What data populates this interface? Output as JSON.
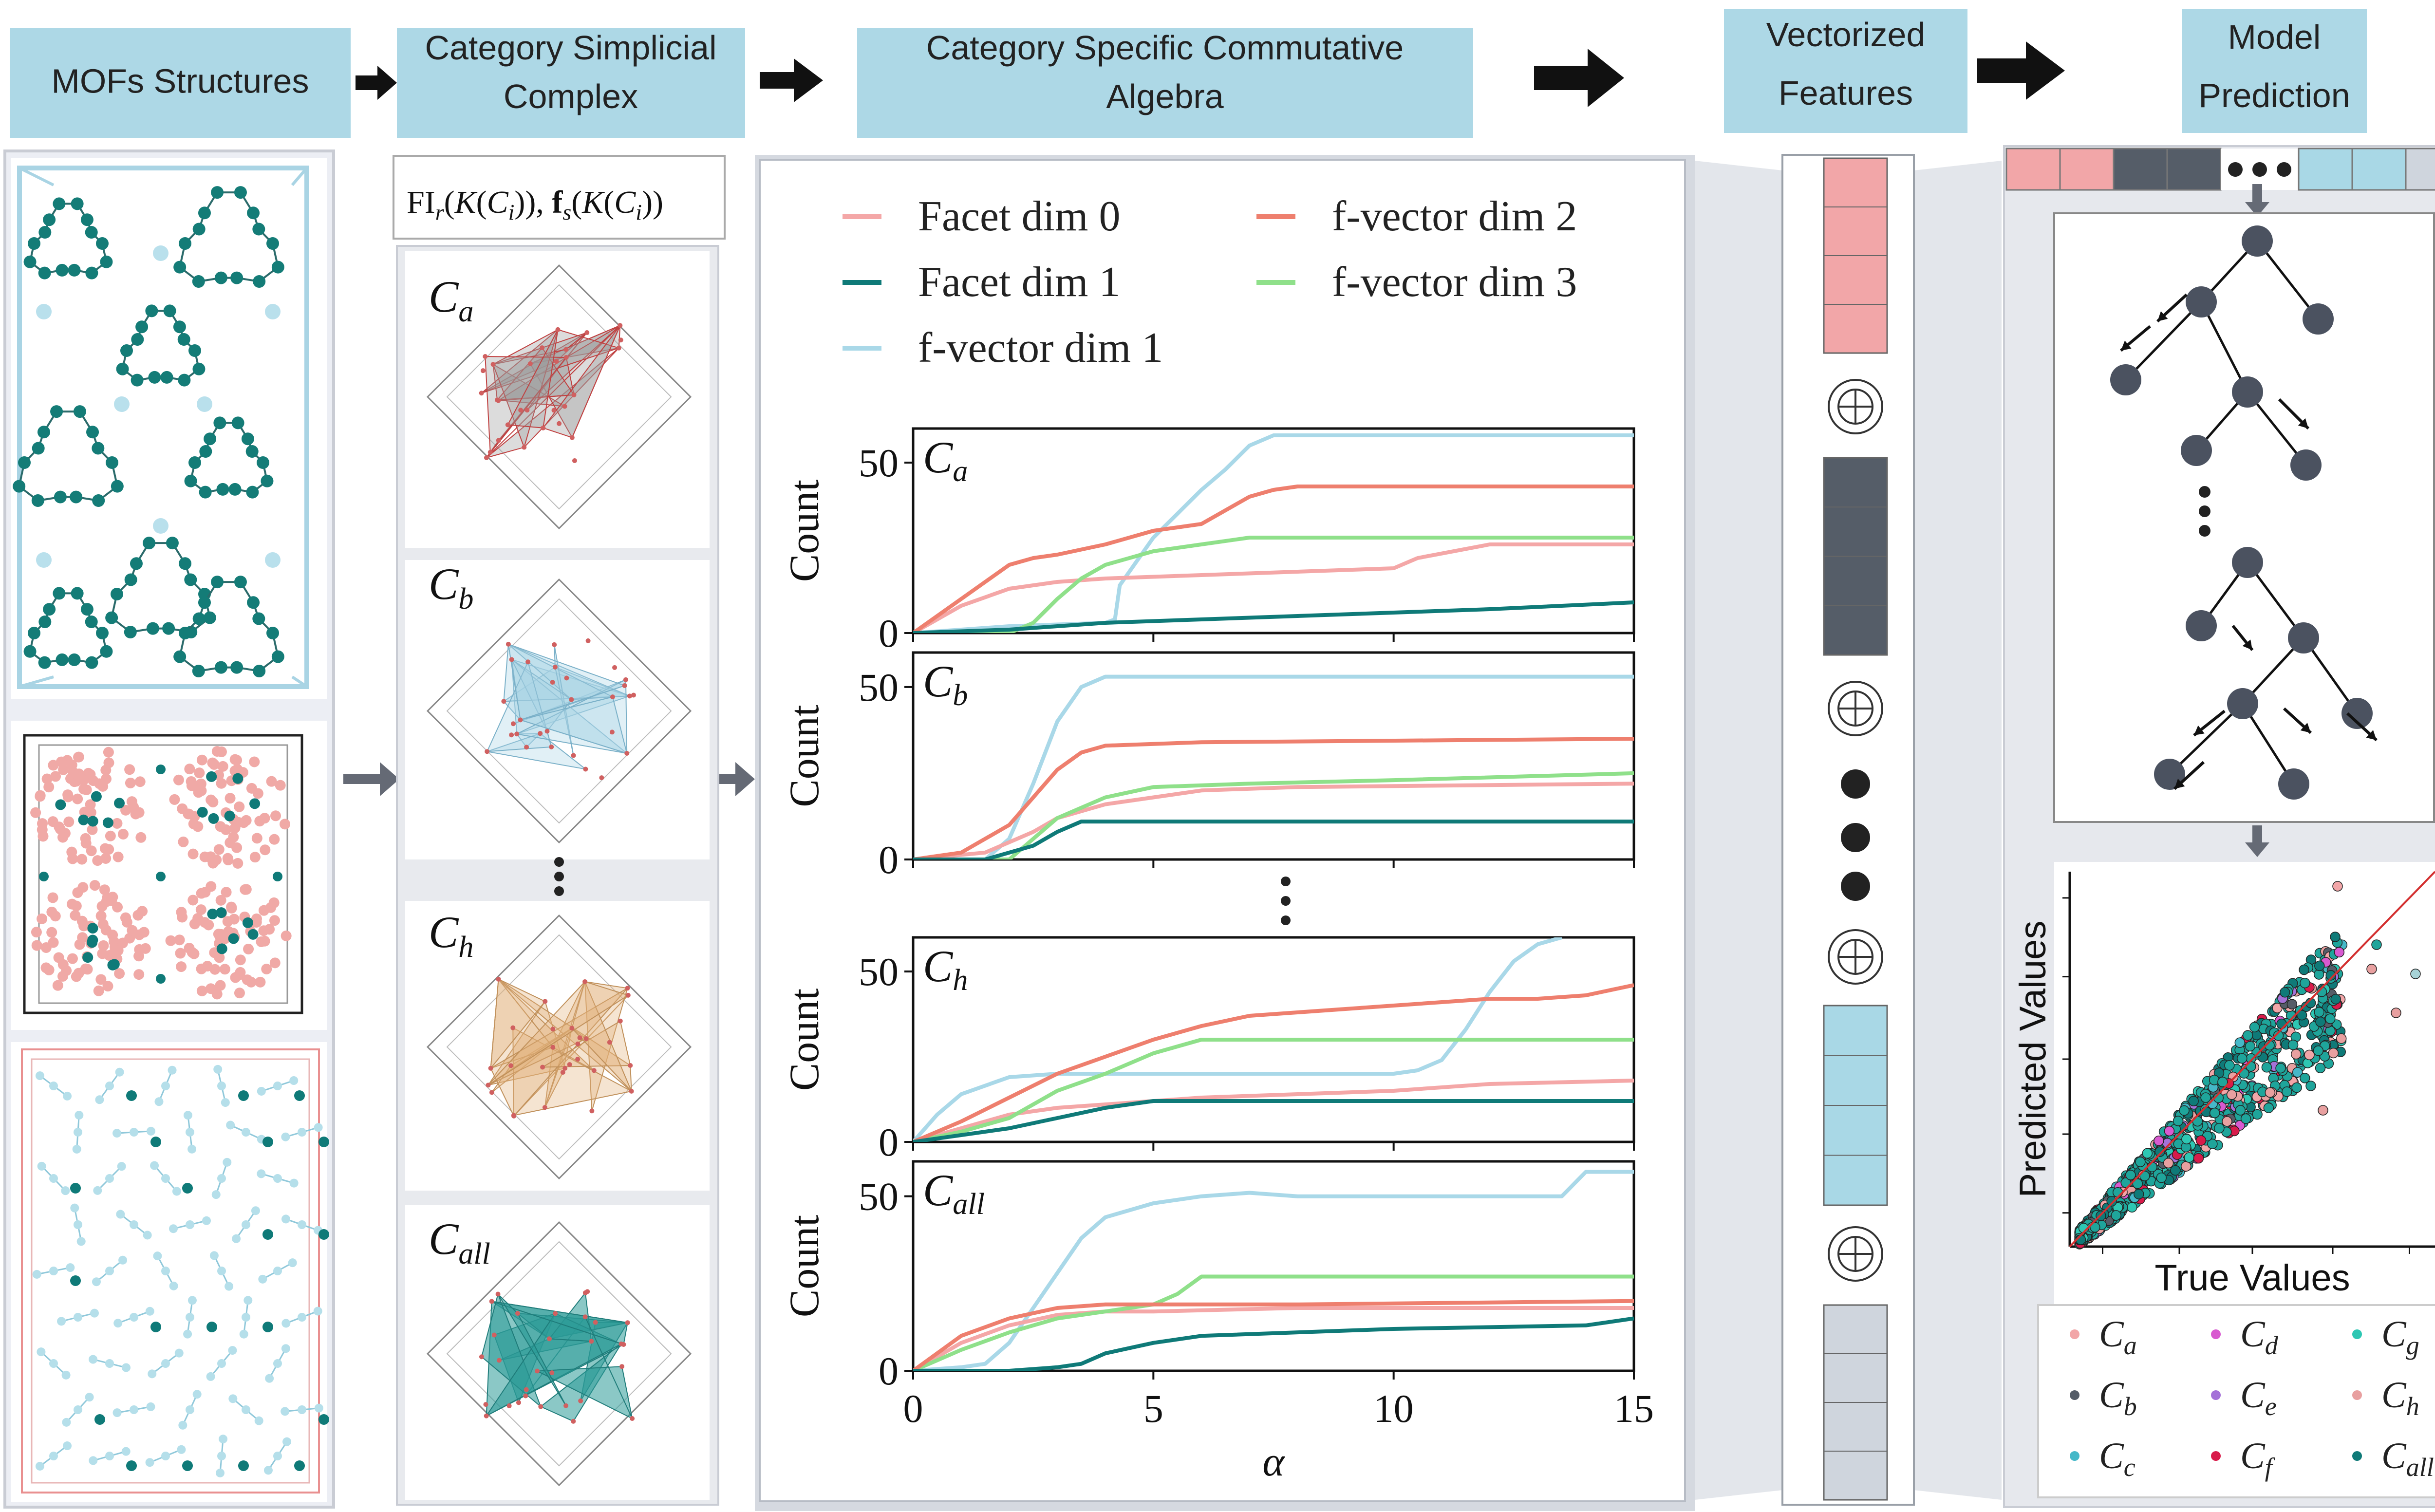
{
  "headers": {
    "mofs": "MOFs Structures",
    "complex": [
      "Category Simplicial",
      "Complex"
    ],
    "algebra": [
      "Category Specific Commutative",
      "Algebra"
    ],
    "vectorized": [
      "Vectorized",
      "Features"
    ],
    "model": [
      "Model",
      "Prediction"
    ]
  },
  "formula": "FI_r(K(C_i)), f_s(K(C_i))",
  "complex_labels": [
    "C",
    "C",
    "C",
    "C"
  ],
  "complex_subs": [
    "a",
    "b",
    "h",
    "all"
  ],
  "colors": {
    "header_bg": "#add8e6",
    "facet0": "#f4a7a7",
    "facet1": "#0f7a78",
    "fvec1": "#a9d8e8",
    "fvec2": "#ee7f6e",
    "fvec3": "#8fe08a",
    "feat_pink": "#f2a6a8",
    "feat_dark": "#555d68",
    "feat_blue": "#a9d8e6",
    "feat_gray": "#cfd5dd"
  },
  "chart_data": {
    "type": "line",
    "legend": [
      "Facet dim 0",
      "Facet dim 1",
      "f-vector dim 1",
      "f-vector dim 2",
      "f-vector dim 3"
    ],
    "xlabel": "α",
    "ylabel": "Count",
    "xlim": [
      0,
      15
    ],
    "ylim": [
      0,
      60
    ],
    "xticks": [
      "0",
      "5",
      "10",
      "15"
    ],
    "yticks": [
      "0",
      "50"
    ],
    "panels": [
      {
        "label": "C",
        "sub": "a",
        "series": [
          {
            "name": "Facet dim 0",
            "x": [
              0,
              1,
              2,
              3,
              4,
              6,
              8,
              10,
              10.5,
              12,
              15
            ],
            "y": [
              0,
              8,
              13,
              15,
              16,
              17,
              18,
              19,
              22,
              26,
              26
            ]
          },
          {
            "name": "Facet dim 1",
            "x": [
              0,
              2,
              4,
              6,
              8,
              10,
              12,
              15
            ],
            "y": [
              0,
              1,
              3,
              4,
              5,
              6,
              7,
              9
            ]
          },
          {
            "name": "f-vector dim 1",
            "x": [
              0,
              2,
              4,
              4.2,
              4.3,
              5,
              5.5,
              6,
              6.5,
              7,
              7.5,
              15
            ],
            "y": [
              0,
              2,
              3,
              4,
              14,
              28,
              35,
              42,
              48,
              55,
              58,
              58
            ]
          },
          {
            "name": "f-vector dim 2",
            "x": [
              0,
              1,
              2,
              2.5,
              3,
              4,
              5,
              6,
              6.5,
              7,
              7.5,
              8,
              15
            ],
            "y": [
              0,
              10,
              20,
              22,
              23,
              26,
              30,
              32,
              36,
              40,
              42,
              43,
              43
            ]
          },
          {
            "name": "f-vector dim 3",
            "x": [
              0,
              2,
              2.5,
              3,
              3.5,
              4,
              5,
              6,
              7,
              15
            ],
            "y": [
              0,
              0,
              3,
              10,
              16,
              20,
              24,
              26,
              28,
              28
            ]
          }
        ]
      },
      {
        "label": "C",
        "sub": "b",
        "series": [
          {
            "name": "Facet dim 0",
            "x": [
              0,
              1.5,
              2.5,
              3,
              4,
              5,
              6,
              8,
              15
            ],
            "y": [
              0,
              2,
              8,
              12,
              16,
              18,
              20,
              21,
              22
            ]
          },
          {
            "name": "Facet dim 1",
            "x": [
              0,
              1.5,
              2.5,
              3,
              3.5,
              15
            ],
            "y": [
              0,
              0,
              4,
              8,
              11,
              11
            ]
          },
          {
            "name": "f-vector dim 1",
            "x": [
              0,
              1.5,
              2,
              2.5,
              3,
              3.5,
              4,
              15
            ],
            "y": [
              0,
              0,
              6,
              22,
              40,
              50,
              53,
              53
            ]
          },
          {
            "name": "f-vector dim 2",
            "x": [
              0,
              1,
              2,
              2.5,
              3,
              3.5,
              4,
              6,
              15
            ],
            "y": [
              0,
              2,
              10,
              18,
              26,
              31,
              33,
              34,
              35
            ]
          },
          {
            "name": "f-vector dim 3",
            "x": [
              0,
              2,
              2.5,
              3,
              4,
              5,
              7,
              10,
              15
            ],
            "y": [
              0,
              0,
              6,
              12,
              18,
              21,
              22,
              23,
              25
            ]
          }
        ]
      },
      {
        "label": "C",
        "sub": "h",
        "series": [
          {
            "name": "Facet dim 0",
            "x": [
              0,
              1,
              2,
              3,
              4,
              5,
              6,
              8,
              10,
              12,
              15
            ],
            "y": [
              0,
              4,
              8,
              10,
              11,
              12,
              13,
              14,
              15,
              17,
              18
            ]
          },
          {
            "name": "Facet dim 1",
            "x": [
              0,
              1,
              2,
              3,
              4,
              5,
              15
            ],
            "y": [
              0,
              2,
              4,
              7,
              10,
              12,
              12
            ]
          },
          {
            "name": "f-vector dim 1",
            "x": [
              0,
              0.5,
              1,
              2,
              3,
              4,
              5,
              8,
              10,
              10.5,
              11,
              11.5,
              12,
              12.5,
              13,
              13.5
            ],
            "y": [
              0,
              8,
              14,
              19,
              20,
              20,
              20,
              20,
              20,
              21,
              24,
              33,
              44,
              53,
              58,
              60
            ]
          },
          {
            "name": "f-vector dim 2",
            "x": [
              0,
              1,
              2,
              3,
              4,
              5,
              6,
              7,
              8,
              9,
              10,
              11,
              12,
              13,
              14,
              15
            ],
            "y": [
              0,
              6,
              13,
              20,
              25,
              30,
              34,
              37,
              38,
              39,
              40,
              41,
              42,
              42,
              43,
              46
            ]
          },
          {
            "name": "f-vector dim 3",
            "x": [
              0,
              1,
              2,
              3,
              4,
              5,
              6,
              15
            ],
            "y": [
              0,
              3,
              7,
              15,
              20,
              26,
              30,
              30
            ]
          }
        ]
      },
      {
        "label": "C",
        "sub": "all",
        "series": [
          {
            "name": "Facet dim 0",
            "x": [
              0,
              1,
              2,
              3,
              4,
              5,
              8,
              15
            ],
            "y": [
              0,
              8,
              13,
              16,
              17,
              17,
              18,
              18
            ]
          },
          {
            "name": "Facet dim 1",
            "x": [
              0,
              2,
              3,
              3.5,
              4,
              5,
              6,
              10,
              14,
              15
            ],
            "y": [
              0,
              0,
              1,
              2,
              5,
              8,
              10,
              12,
              13,
              15
            ]
          },
          {
            "name": "f-vector dim 1",
            "x": [
              0,
              1,
              1.5,
              2,
              2.5,
              3,
              3.5,
              4,
              5,
              6,
              7,
              8,
              10,
              12,
              13.5,
              14,
              15
            ],
            "y": [
              0,
              1,
              2,
              8,
              18,
              28,
              38,
              44,
              48,
              50,
              51,
              50,
              50,
              50,
              50,
              57,
              57
            ]
          },
          {
            "name": "f-vector dim 2",
            "x": [
              0,
              1,
              2,
              3,
              4,
              5,
              8,
              15
            ],
            "y": [
              0,
              10,
              15,
              18,
              19,
              19,
              19,
              20
            ]
          },
          {
            "name": "f-vector dim 3",
            "x": [
              0,
              1,
              2,
              3,
              4,
              5,
              5.5,
              6,
              8,
              15
            ],
            "y": [
              0,
              6,
              11,
              15,
              17,
              19,
              22,
              27,
              27,
              27
            ]
          }
        ]
      }
    ]
  },
  "scatter": {
    "xlabel": "True Values",
    "ylabel": "Predicted Values",
    "legend": [
      {
        "label": "C",
        "sub": "a",
        "color": "#f2a6a8"
      },
      {
        "label": "C",
        "sub": "d",
        "color": "#d85ad0"
      },
      {
        "label": "C",
        "sub": "g",
        "color": "#2ec7b3"
      },
      {
        "label": "C",
        "sub": "b",
        "color": "#555d68"
      },
      {
        "label": "C",
        "sub": "e",
        "color": "#a472d8"
      },
      {
        "label": "C",
        "sub": "h",
        "color": "#e8a0a0"
      },
      {
        "label": "C",
        "sub": "c",
        "color": "#45b8c8"
      },
      {
        "label": "C",
        "sub": "f",
        "color": "#d81b4a"
      },
      {
        "label": "C",
        "sub": "all",
        "color": "#0f7a78"
      }
    ]
  }
}
